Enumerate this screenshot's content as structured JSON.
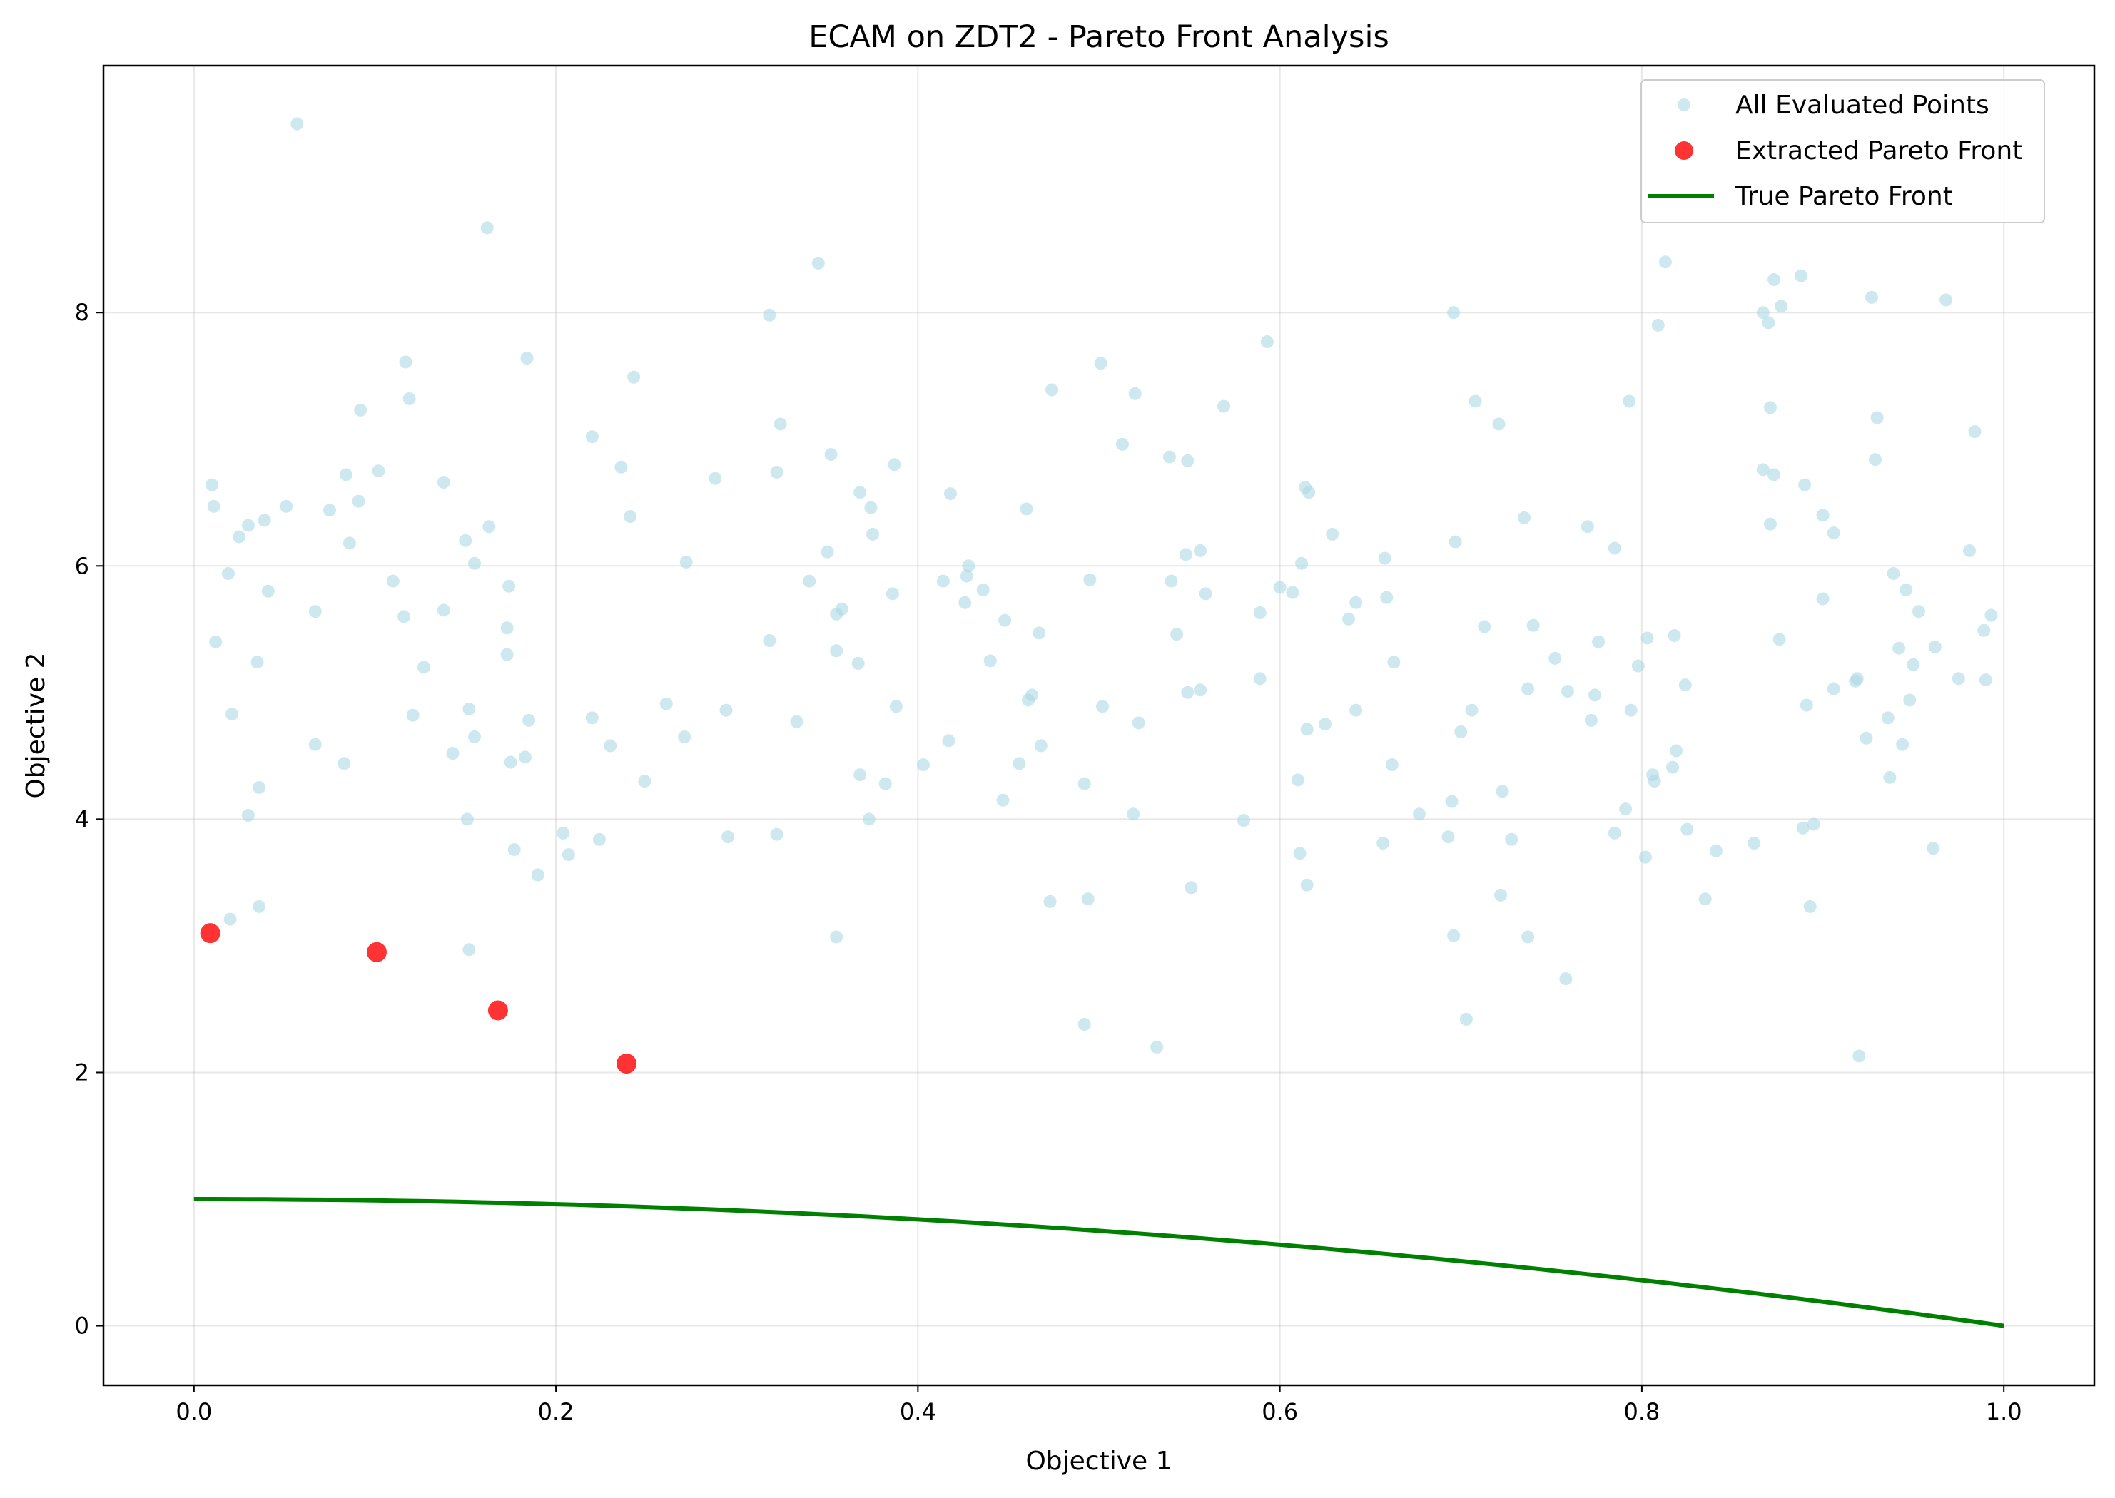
{
  "chart_data": {
    "type": "scatter",
    "title": "ECAM on ZDT2 - Pareto Front Analysis",
    "xlabel": "Objective 1",
    "ylabel": "Objective 2",
    "xlim": [
      -0.05,
      1.05
    ],
    "ylim": [
      -0.47,
      9.95
    ],
    "xticks": [
      0.0,
      0.2,
      0.4,
      0.6,
      0.8,
      1.0
    ],
    "xtick_labels": [
      "0.0",
      "0.2",
      "0.4",
      "0.6",
      "0.8",
      "1.0"
    ],
    "yticks": [
      0,
      2,
      4,
      6,
      8
    ],
    "ytick_labels": [
      "0",
      "2",
      "4",
      "6",
      "8"
    ],
    "grid": true,
    "legend_position": "top-right",
    "series": [
      {
        "name": "All Evaluated Points",
        "kind": "scatter",
        "color": "#add8e6",
        "points": [
          [
            0.057,
            9.49
          ],
          [
            0.162,
            8.67
          ],
          [
            0.345,
            8.39
          ],
          [
            0.318,
            7.98
          ],
          [
            0.117,
            7.61
          ],
          [
            0.119,
            7.32
          ],
          [
            0.184,
            7.64
          ],
          [
            0.243,
            7.49
          ],
          [
            0.092,
            7.23
          ],
          [
            0.324,
            7.12
          ],
          [
            0.22,
            7.02
          ],
          [
            0.352,
            6.88
          ],
          [
            0.322,
            6.74
          ],
          [
            0.288,
            6.69
          ],
          [
            0.387,
            6.8
          ],
          [
            0.102,
            6.75
          ],
          [
            0.084,
            6.72
          ],
          [
            0.236,
            6.78
          ],
          [
            0.138,
            6.66
          ],
          [
            0.01,
            6.64
          ],
          [
            0.011,
            6.47
          ],
          [
            0.051,
            6.47
          ],
          [
            0.075,
            6.44
          ],
          [
            0.091,
            6.51
          ],
          [
            0.039,
            6.36
          ],
          [
            0.03,
            6.32
          ],
          [
            0.163,
            6.31
          ],
          [
            0.241,
            6.39
          ],
          [
            0.025,
            6.23
          ],
          [
            0.086,
            6.18
          ],
          [
            0.15,
            6.2
          ],
          [
            0.155,
            6.02
          ],
          [
            0.272,
            6.03
          ],
          [
            0.019,
            5.94
          ],
          [
            0.11,
            5.88
          ],
          [
            0.174,
            5.84
          ],
          [
            0.041,
            5.8
          ],
          [
            0.138,
            5.65
          ],
          [
            0.067,
            5.64
          ],
          [
            0.116,
            5.6
          ],
          [
            0.173,
            5.51
          ],
          [
            0.012,
            5.4
          ],
          [
            0.173,
            5.3
          ],
          [
            0.035,
            5.24
          ],
          [
            0.127,
            5.2
          ],
          [
            0.152,
            4.87
          ],
          [
            0.121,
            4.82
          ],
          [
            0.021,
            4.83
          ],
          [
            0.185,
            4.78
          ],
          [
            0.155,
            4.65
          ],
          [
            0.067,
            4.59
          ],
          [
            0.083,
            4.44
          ],
          [
            0.143,
            4.52
          ],
          [
            0.175,
            4.45
          ],
          [
            0.183,
            4.49
          ],
          [
            0.036,
            4.25
          ],
          [
            0.03,
            4.03
          ],
          [
            0.151,
            4.0
          ],
          [
            0.204,
            3.89
          ],
          [
            0.224,
            3.84
          ],
          [
            0.207,
            3.72
          ],
          [
            0.177,
            3.76
          ],
          [
            0.19,
            3.56
          ],
          [
            0.036,
            3.31
          ],
          [
            0.02,
            3.21
          ],
          [
            0.152,
            2.97
          ],
          [
            0.22,
            4.8
          ],
          [
            0.23,
            4.58
          ],
          [
            0.249,
            4.3
          ],
          [
            0.261,
            4.91
          ],
          [
            0.271,
            4.65
          ],
          [
            0.294,
            4.86
          ],
          [
            0.295,
            3.86
          ],
          [
            0.318,
            5.41
          ],
          [
            0.322,
            3.88
          ],
          [
            0.333,
            4.77
          ],
          [
            0.34,
            5.88
          ],
          [
            0.35,
            6.11
          ],
          [
            0.355,
            5.62
          ],
          [
            0.358,
            5.66
          ],
          [
            0.355,
            5.33
          ],
          [
            0.367,
            5.23
          ],
          [
            0.368,
            6.58
          ],
          [
            0.374,
            6.46
          ],
          [
            0.375,
            6.25
          ],
          [
            0.368,
            4.35
          ],
          [
            0.373,
            4.0
          ],
          [
            0.382,
            4.28
          ],
          [
            0.386,
            5.78
          ],
          [
            0.388,
            4.89
          ],
          [
            0.355,
            3.07
          ],
          [
            0.403,
            4.43
          ],
          [
            0.414,
            5.88
          ],
          [
            0.418,
            6.57
          ],
          [
            0.417,
            4.62
          ],
          [
            0.426,
            5.71
          ],
          [
            0.427,
            5.92
          ],
          [
            0.428,
            6.0
          ],
          [
            0.436,
            5.81
          ],
          [
            0.44,
            5.25
          ],
          [
            0.447,
            4.15
          ],
          [
            0.448,
            5.57
          ],
          [
            0.456,
            4.44
          ],
          [
            0.46,
            6.45
          ],
          [
            0.461,
            4.94
          ],
          [
            0.463,
            4.98
          ],
          [
            0.467,
            5.47
          ],
          [
            0.468,
            4.58
          ],
          [
            0.474,
            7.39
          ],
          [
            0.473,
            3.35
          ],
          [
            0.492,
            4.28
          ],
          [
            0.494,
            3.37
          ],
          [
            0.495,
            5.89
          ],
          [
            0.501,
            7.6
          ],
          [
            0.502,
            4.89
          ],
          [
            0.513,
            6.96
          ],
          [
            0.519,
            4.04
          ],
          [
            0.52,
            7.36
          ],
          [
            0.522,
            4.76
          ],
          [
            0.492,
            2.38
          ],
          [
            0.532,
            2.2
          ],
          [
            0.539,
            6.86
          ],
          [
            0.54,
            5.88
          ],
          [
            0.543,
            5.46
          ],
          [
            0.548,
            6.09
          ],
          [
            0.549,
            6.83
          ],
          [
            0.549,
            5.0
          ],
          [
            0.551,
            3.46
          ],
          [
            0.556,
            6.12
          ],
          [
            0.556,
            5.02
          ],
          [
            0.559,
            5.78
          ],
          [
            0.569,
            7.26
          ],
          [
            0.58,
            3.99
          ],
          [
            0.589,
            5.63
          ],
          [
            0.589,
            5.11
          ],
          [
            0.593,
            7.77
          ],
          [
            0.6,
            5.83
          ],
          [
            0.607,
            5.79
          ],
          [
            0.61,
            4.31
          ],
          [
            0.611,
            3.73
          ],
          [
            0.612,
            6.02
          ],
          [
            0.614,
            6.62
          ],
          [
            0.615,
            4.71
          ],
          [
            0.616,
            6.58
          ],
          [
            0.615,
            3.48
          ],
          [
            0.625,
            4.75
          ],
          [
            0.629,
            6.25
          ],
          [
            0.638,
            5.58
          ],
          [
            0.642,
            5.71
          ],
          [
            0.642,
            4.86
          ],
          [
            0.657,
            3.81
          ],
          [
            0.658,
            6.06
          ],
          [
            0.659,
            5.75
          ],
          [
            0.662,
            4.43
          ],
          [
            0.663,
            5.24
          ],
          [
            0.677,
            4.04
          ],
          [
            0.693,
            3.86
          ],
          [
            0.695,
            4.14
          ],
          [
            0.696,
            8.0
          ],
          [
            0.697,
            6.19
          ],
          [
            0.7,
            4.69
          ],
          [
            0.696,
            3.08
          ],
          [
            0.703,
            2.42
          ],
          [
            0.706,
            4.86
          ],
          [
            0.708,
            7.3
          ],
          [
            0.713,
            5.52
          ],
          [
            0.721,
            7.12
          ],
          [
            0.723,
            4.22
          ],
          [
            0.722,
            3.4
          ],
          [
            0.728,
            3.84
          ],
          [
            0.735,
            6.38
          ],
          [
            0.737,
            5.03
          ],
          [
            0.737,
            3.07
          ],
          [
            0.74,
            5.53
          ],
          [
            0.752,
            5.27
          ],
          [
            0.758,
            2.74
          ],
          [
            0.759,
            5.01
          ],
          [
            0.77,
            6.31
          ],
          [
            0.772,
            4.78
          ],
          [
            0.774,
            4.98
          ],
          [
            0.776,
            5.4
          ],
          [
            0.785,
            6.14
          ],
          [
            0.785,
            3.89
          ],
          [
            0.791,
            4.08
          ],
          [
            0.793,
            7.3
          ],
          [
            0.794,
            4.86
          ],
          [
            0.798,
            5.21
          ],
          [
            0.802,
            3.7
          ],
          [
            0.803,
            5.43
          ],
          [
            0.806,
            4.35
          ],
          [
            0.807,
            4.3
          ],
          [
            0.809,
            7.9
          ],
          [
            0.813,
            8.4
          ],
          [
            0.817,
            4.41
          ],
          [
            0.818,
            5.45
          ],
          [
            0.819,
            4.54
          ],
          [
            0.825,
            3.92
          ],
          [
            0.824,
            5.06
          ],
          [
            0.835,
            3.37
          ],
          [
            0.841,
            3.75
          ],
          [
            0.862,
            3.81
          ],
          [
            0.867,
            6.76
          ],
          [
            0.867,
            8.0
          ],
          [
            0.87,
            7.92
          ],
          [
            0.871,
            7.25
          ],
          [
            0.871,
            6.33
          ],
          [
            0.873,
            8.26
          ],
          [
            0.873,
            6.72
          ],
          [
            0.876,
            5.42
          ],
          [
            0.877,
            8.05
          ],
          [
            0.888,
            8.29
          ],
          [
            0.889,
            3.93
          ],
          [
            0.89,
            6.64
          ],
          [
            0.891,
            4.9
          ],
          [
            0.893,
            3.31
          ],
          [
            0.895,
            3.96
          ],
          [
            0.9,
            6.4
          ],
          [
            0.9,
            5.74
          ],
          [
            0.906,
            6.26
          ],
          [
            0.906,
            5.03
          ],
          [
            0.918,
            5.09
          ],
          [
            0.919,
            5.11
          ],
          [
            0.92,
            2.13
          ],
          [
            0.924,
            4.64
          ],
          [
            0.927,
            8.12
          ],
          [
            0.929,
            6.84
          ],
          [
            0.93,
            7.17
          ],
          [
            0.936,
            4.8
          ],
          [
            0.937,
            4.33
          ],
          [
            0.939,
            5.94
          ],
          [
            0.942,
            5.35
          ],
          [
            0.944,
            4.59
          ],
          [
            0.946,
            5.81
          ],
          [
            0.948,
            4.94
          ],
          [
            0.95,
            5.22
          ],
          [
            0.953,
            5.64
          ],
          [
            0.961,
            3.77
          ],
          [
            0.962,
            5.36
          ],
          [
            0.968,
            8.1
          ],
          [
            0.975,
            5.11
          ],
          [
            0.981,
            6.12
          ],
          [
            0.984,
            7.06
          ],
          [
            0.989,
            5.49
          ],
          [
            0.99,
            5.1
          ],
          [
            0.993,
            5.61
          ]
        ]
      },
      {
        "name": "Extracted Pareto Front",
        "kind": "scatter",
        "color": "#ff0000",
        "points": [
          [
            0.009,
            3.1
          ],
          [
            0.101,
            2.95
          ],
          [
            0.168,
            2.49
          ],
          [
            0.239,
            2.07
          ]
        ]
      },
      {
        "name": "True Pareto Front",
        "kind": "line",
        "color": "#008000",
        "function": "y = 1 - x^2",
        "x_range": [
          0.0,
          1.0
        ]
      }
    ]
  }
}
